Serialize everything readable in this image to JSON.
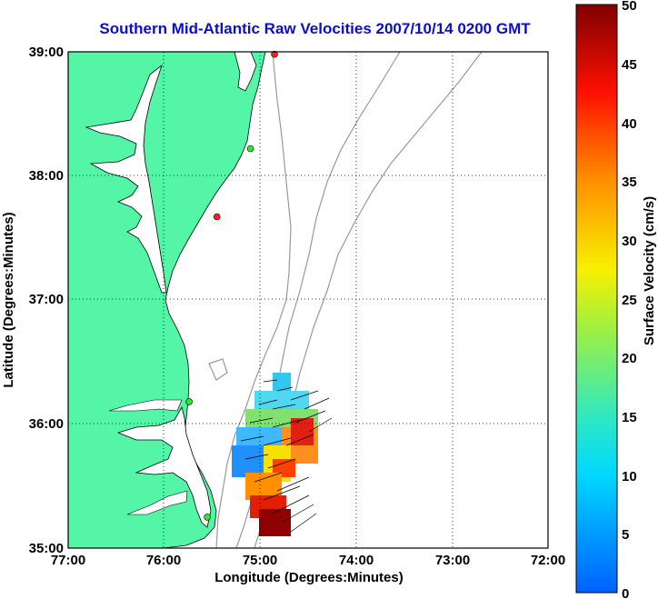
{
  "title": "Southern Mid-Atlantic Raw Velocities 2007/10/14 0200 GMT",
  "x_axis": {
    "label": "Longitude (Degrees:Minutes)",
    "ticks": [
      "77:00",
      "76:00",
      "75:00",
      "74:00",
      "73:00",
      "72:00"
    ]
  },
  "y_axis": {
    "label": "Latitude (Degrees:Minutes)",
    "ticks": [
      "39:00",
      "38:00",
      "37:00",
      "36:00",
      "35:00"
    ]
  },
  "colorbar": {
    "label": "Surface Velocity (cm/s)",
    "ticks": [
      "50",
      "45",
      "40",
      "35",
      "30",
      "25",
      "20",
      "15",
      "10",
      "5",
      "0"
    ],
    "range": [
      0,
      50
    ]
  },
  "colors": {
    "land": "#55f5a8",
    "title": "#0a10c8",
    "bathymetry": "#999999"
  },
  "stations": [
    {
      "lon": -74.85,
      "lat": 38.98,
      "color": "#ff2020"
    },
    {
      "lon": -75.1,
      "lat": 38.22,
      "color": "#30e830"
    },
    {
      "lon": -75.45,
      "lat": 37.67,
      "color": "#ff2020"
    },
    {
      "lon": -75.74,
      "lat": 36.18,
      "color": "#30e830"
    },
    {
      "lon": -75.55,
      "lat": 35.25,
      "color": "#30e830"
    }
  ]
}
